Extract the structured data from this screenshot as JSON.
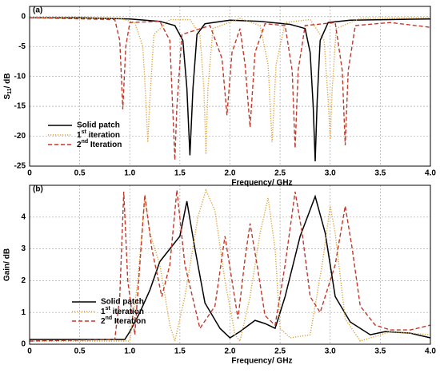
{
  "chart_data": [
    {
      "type": "line",
      "panel_label": "(a)",
      "xlabel": "Frequency/ GHz",
      "ylabel": "S11/ dB",
      "xlim": [
        0,
        4
      ],
      "ylim": [
        -25,
        1.7
      ],
      "xticks": [
        0,
        0.5,
        {
          "value": 1,
          "label": "1.0"
        },
        1.5,
        {
          "value": 2,
          "label": "2.0"
        },
        2.5,
        {
          "value": 3,
          "label": "3.0"
        },
        3.5,
        {
          "value": 4,
          "label": "4.0"
        }
      ],
      "yticks": [
        0,
        -5,
        -10,
        -15,
        -20,
        -25
      ],
      "grid": true,
      "legend": "lower left",
      "series": [
        {
          "name": "Solid patch",
          "color": "#000000",
          "style": "solid",
          "x": [
            0,
            0.5,
            1,
            1.3,
            1.45,
            1.53,
            1.57,
            1.6,
            1.63,
            1.67,
            1.75,
            2.0,
            2.3,
            2.6,
            2.75,
            2.8,
            2.83,
            2.85,
            2.87,
            2.9,
            2.98,
            3.2,
            3.6,
            4.0
          ],
          "values": [
            -0.2,
            -0.2,
            -0.4,
            -0.8,
            -1.5,
            -4,
            -12,
            -23.2,
            -12,
            -3,
            -1.2,
            -0.6,
            -0.8,
            -1.3,
            -2,
            -6,
            -15,
            -24.2,
            -14,
            -4,
            -1,
            -0.6,
            -0.5,
            -0.4
          ]
        },
        {
          "name": "1st iteration",
          "color": "#e0a030",
          "style": "dotted",
          "x": [
            0,
            0.9,
            1.05,
            1.13,
            1.16,
            1.18,
            1.2,
            1.24,
            1.4,
            1.6,
            1.7,
            1.74,
            1.76,
            1.78,
            1.83,
            2.1,
            2.3,
            2.38,
            2.42,
            2.46,
            2.55,
            2.8,
            2.94,
            2.98,
            3.0,
            3.02,
            3.06,
            3.3,
            4.0
          ],
          "values": [
            -0.2,
            -0.3,
            -1,
            -5,
            -14,
            -21,
            -14,
            -3,
            -0.5,
            -0.5,
            -3,
            -12,
            -23,
            -12,
            -2,
            -0.3,
            -1.5,
            -8,
            -21,
            -8,
            -1,
            -0.5,
            -4,
            -14,
            -20.5,
            -12,
            -2,
            -0.3,
            -0.2
          ]
        },
        {
          "name": "2nd Iteration",
          "color": "#c0392b",
          "style": "dashed",
          "x": [
            0,
            0.85,
            0.9,
            0.93,
            0.96,
            1.0,
            1.3,
            1.4,
            1.43,
            1.45,
            1.47,
            1.52,
            1.8,
            1.92,
            1.97,
            2.02,
            2.1,
            2.15,
            2.2,
            2.25,
            2.35,
            2.55,
            2.62,
            2.65,
            2.68,
            2.75,
            3.05,
            3.12,
            3.15,
            3.18,
            3.25,
            3.6,
            4.0
          ],
          "values": [
            -0.2,
            -0.5,
            -4,
            -15.5,
            -5,
            -1,
            -0.8,
            -4,
            -16,
            -24,
            -15,
            -3,
            -1.5,
            -7,
            -16.5,
            -6,
            -2,
            -8,
            -18.5,
            -6,
            -1.2,
            -1.5,
            -9,
            -22,
            -9,
            -1.5,
            -1,
            -9,
            -21.5,
            -9,
            -1.5,
            -1,
            -1.8
          ]
        }
      ]
    },
    {
      "type": "line",
      "panel_label": "(b)",
      "xlabel": "Frequency/ GHz",
      "ylabel": "Gain/ dB",
      "xlim": [
        0,
        4
      ],
      "ylim": [
        0,
        5
      ],
      "xticks": [
        0,
        0.5,
        {
          "value": 1,
          "label": "1.0"
        },
        1.5,
        {
          "value": 2,
          "label": "2.0"
        },
        2.5,
        {
          "value": 3,
          "label": "3.0"
        },
        3.5,
        {
          "value": 4,
          "label": "4.0"
        }
      ],
      "yticks": [
        0,
        1,
        2,
        3,
        4
      ],
      "grid": true,
      "legend": "lower center",
      "series": [
        {
          "name": "Solid patch",
          "color": "#000000",
          "style": "solid",
          "x": [
            0,
            0.95,
            1.0,
            1.1,
            1.2,
            1.3,
            1.4,
            1.5,
            1.57,
            1.65,
            1.75,
            1.9,
            2.0,
            2.1,
            2.25,
            2.35,
            2.45,
            2.55,
            2.7,
            2.85,
            2.95,
            3.05,
            3.2,
            3.4,
            3.55,
            3.8,
            4.0
          ],
          "values": [
            0.15,
            0.15,
            0.4,
            1.0,
            1.7,
            2.6,
            3.0,
            3.4,
            4.5,
            3.0,
            1.3,
            0.5,
            0.2,
            0.4,
            0.75,
            0.65,
            0.5,
            1.5,
            3.4,
            4.65,
            3.5,
            1.5,
            0.7,
            0.3,
            0.4,
            0.35,
            0.2
          ]
        },
        {
          "name": "1st iteration",
          "color": "#e0a030",
          "style": "dotted",
          "x": [
            0,
            1.0,
            1.08,
            1.15,
            1.2,
            1.3,
            1.4,
            1.45,
            1.55,
            1.68,
            1.76,
            1.85,
            1.95,
            2.05,
            2.1,
            2.2,
            2.3,
            2.38,
            2.45,
            2.5,
            2.6,
            2.8,
            2.92,
            3.0,
            3.05,
            3.15,
            3.3,
            3.6,
            4.0
          ],
          "values": [
            0.1,
            0.1,
            2,
            4.6,
            3.5,
            2.5,
            0.6,
            0.1,
            1.5,
            4.0,
            4.85,
            4.2,
            2,
            0.3,
            0.1,
            1.5,
            3.5,
            4.6,
            3,
            0.5,
            0.2,
            0.3,
            2.5,
            4.35,
            3.5,
            0.8,
            0.1,
            0.4,
            0.3
          ]
        },
        {
          "name": "2nd Iteration",
          "color": "#c0392b",
          "style": "dashed",
          "x": [
            0,
            0.85,
            0.9,
            0.94,
            0.98,
            1.05,
            1.1,
            1.15,
            1.22,
            1.32,
            1.4,
            1.47,
            1.55,
            1.7,
            1.85,
            1.95,
            2.02,
            2.08,
            2.15,
            2.2,
            2.27,
            2.35,
            2.45,
            2.55,
            2.65,
            2.72,
            2.8,
            2.9,
            3.05,
            3.15,
            3.22,
            3.3,
            3.45,
            3.6,
            3.8,
            4.0
          ],
          "values": [
            0.1,
            0.15,
            1.5,
            4.8,
            2,
            0.3,
            2.5,
            4.7,
            3,
            1.5,
            2.5,
            4.85,
            2.5,
            0.5,
            1.2,
            3.4,
            2,
            0.8,
            2.7,
            3.8,
            2.5,
            0.9,
            0.6,
            2.5,
            4.8,
            3.5,
            1.5,
            1.0,
            2.5,
            4.35,
            3.0,
            1.2,
            0.6,
            0.45,
            0.45,
            0.6
          ]
        }
      ]
    }
  ]
}
